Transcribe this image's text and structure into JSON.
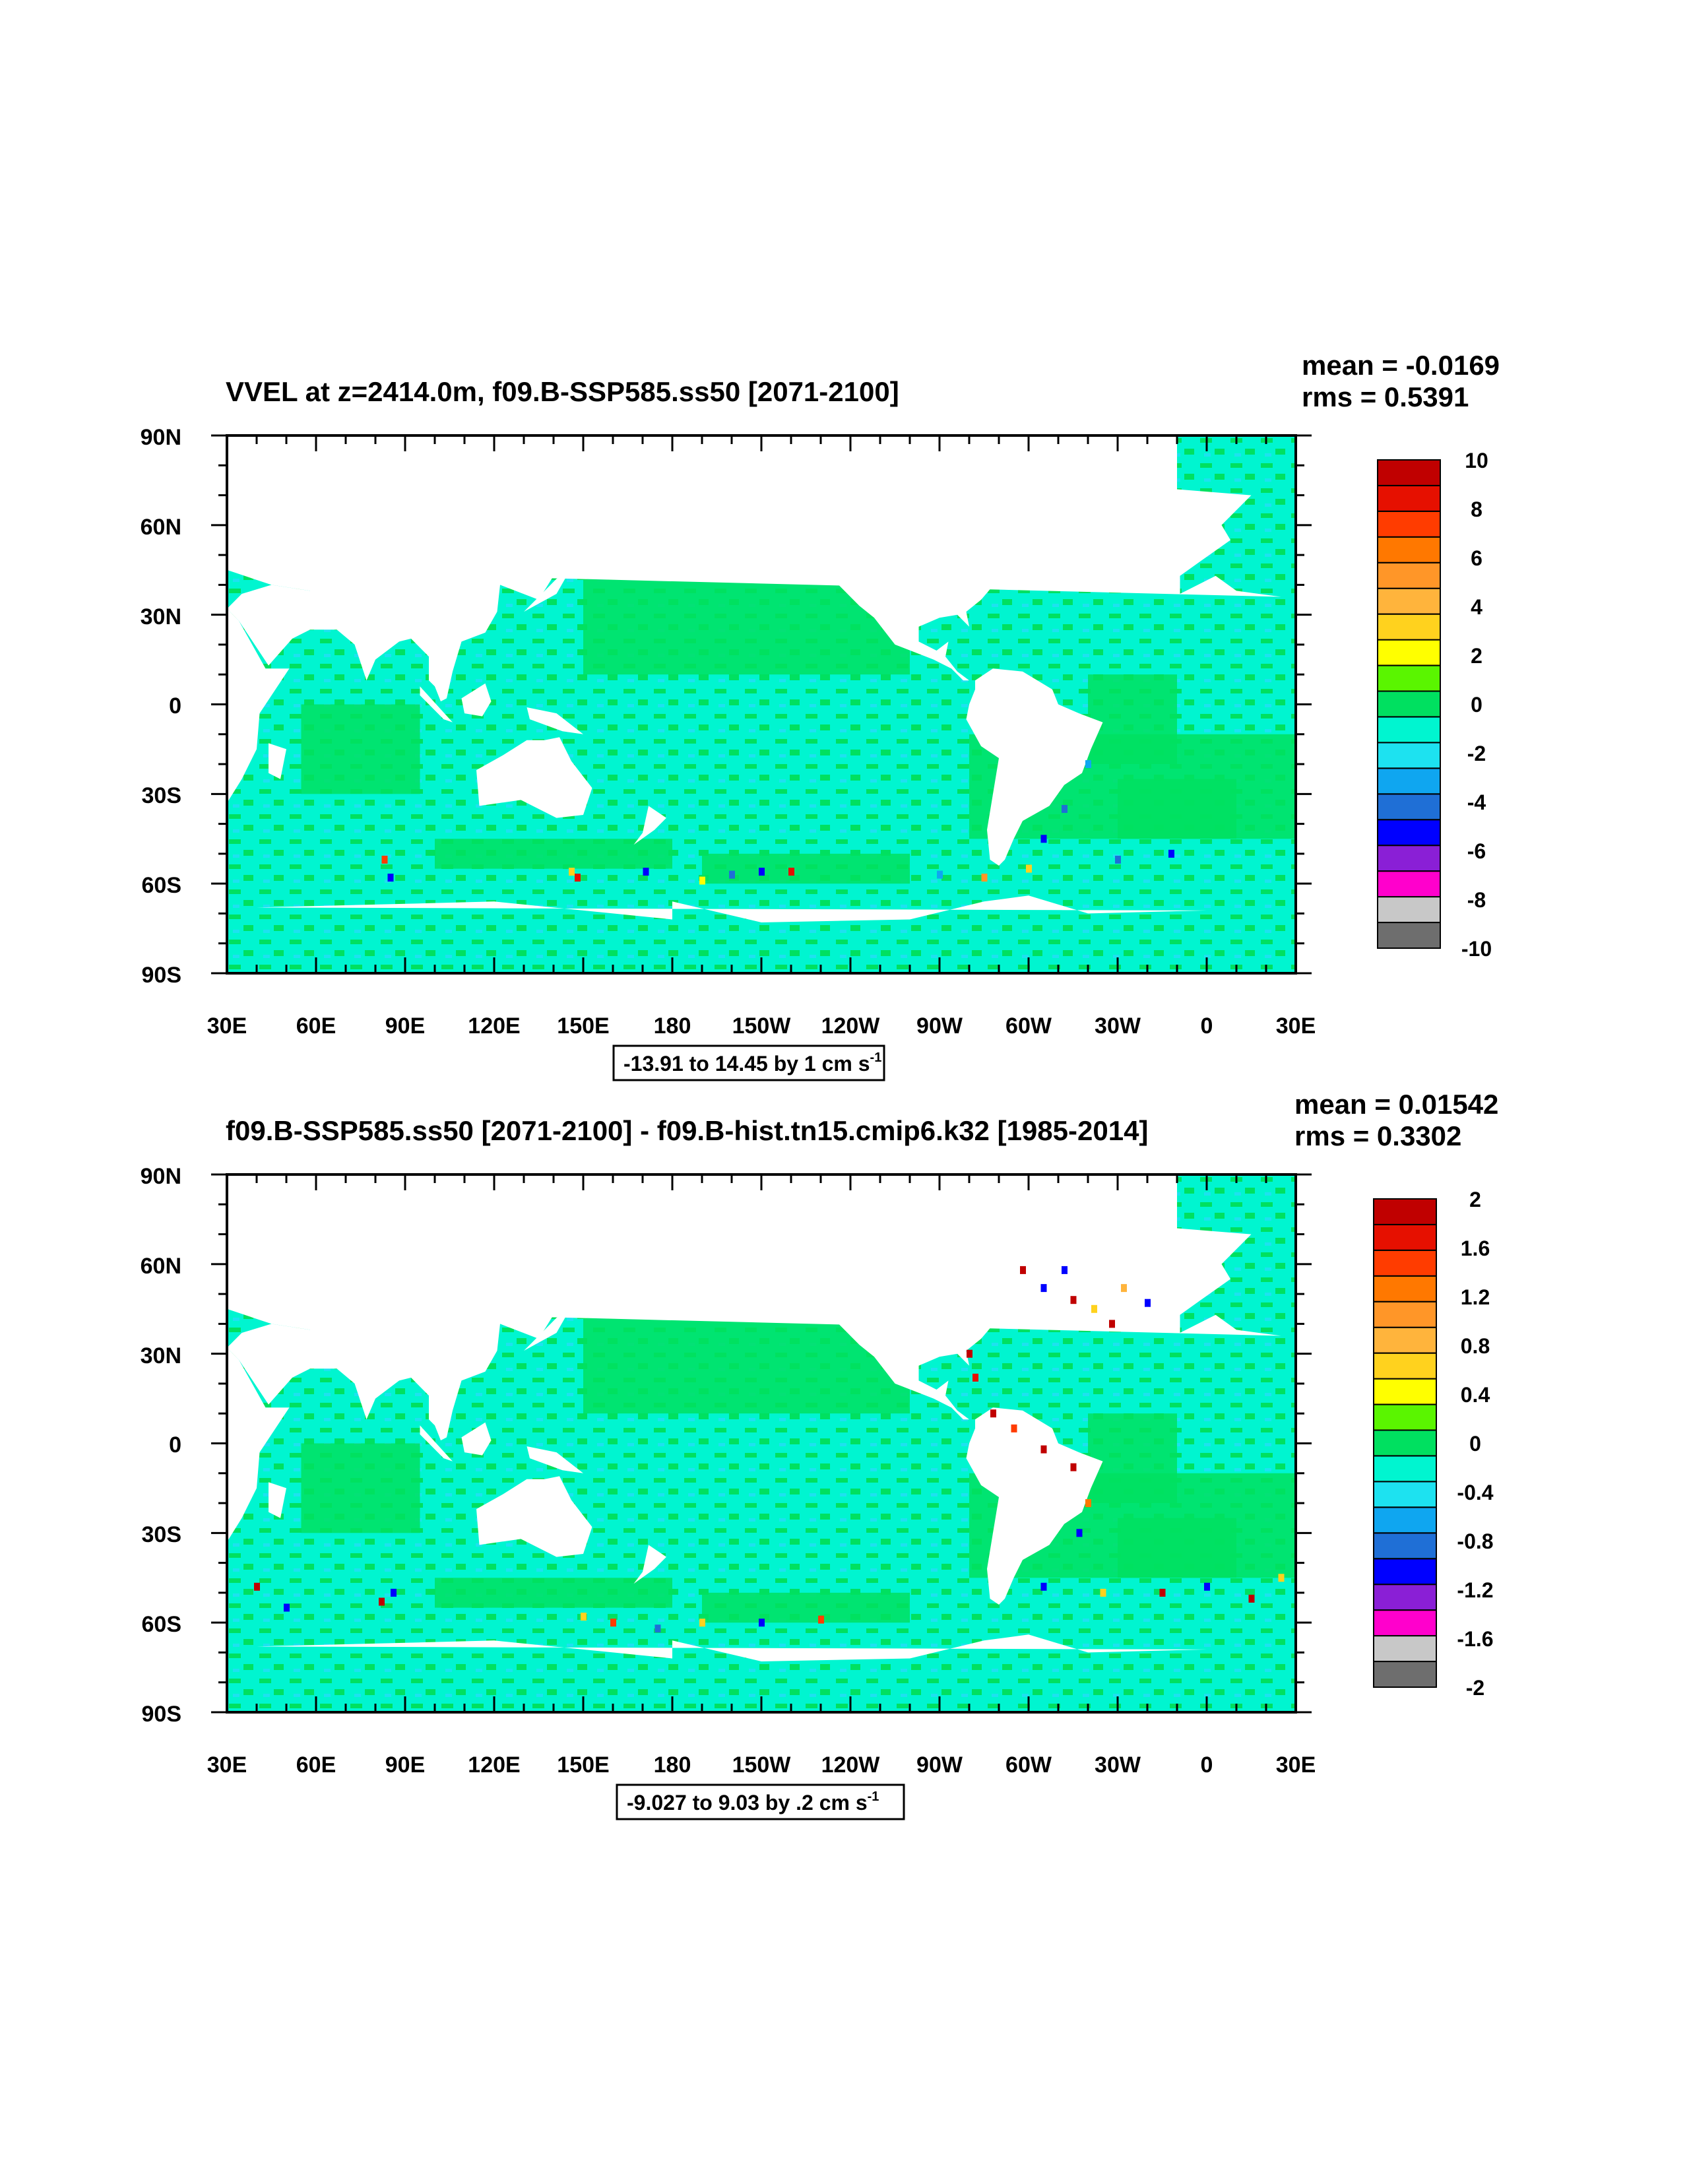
{
  "colorbar_colors": [
    "#6e6e6e",
    "#c8c8c8",
    "#ff00cc",
    "#8a1fd6",
    "#0000ff",
    "#1f6fd6",
    "#0fa6f0",
    "#1de2f0",
    "#00f5d0",
    "#00e060",
    "#5af500",
    "#ffff00",
    "#ffd21e",
    "#ffb43c",
    "#ff9628",
    "#ff7800",
    "#ff3c00",
    "#e61000",
    "#c00000"
  ],
  "map_colors": {
    "ocean_base": "#00f5d0",
    "ocean_alt": "#00e060",
    "land": "#ffffff"
  },
  "x_ticks": [
    "30E",
    "60E",
    "90E",
    "120E",
    "150E",
    "180",
    "150W",
    "120W",
    "90W",
    "60W",
    "30W",
    "0",
    "30E"
  ],
  "y_ticks": [
    "90N",
    "60N",
    "30N",
    "0",
    "30S",
    "60S",
    "90S"
  ],
  "panels": [
    {
      "title": "VVEL at z=2414.0m, f09.B-SSP585.ss50 [2071-2100]",
      "mean": "mean = -0.0169",
      "rms": "rms = 0.5391",
      "range_text": "-13.91 to 14.45 by 1 cm s",
      "range_sup": "-1",
      "colorbar_labels": [
        "10",
        "8",
        "6",
        "4",
        "2",
        "0",
        "-2",
        "-4",
        "-6",
        "-8",
        "-10"
      ],
      "hotspots": [
        {
          "lon": 83,
          "lat": -52,
          "c": "#ff3c00"
        },
        {
          "lon": 85,
          "lat": -58,
          "c": "#0000ff"
        },
        {
          "lon": 146,
          "lat": -56,
          "c": "#ffd21e"
        },
        {
          "lon": 148,
          "lat": -58,
          "c": "#e61000"
        },
        {
          "lon": 171,
          "lat": -56,
          "c": "#0000ff"
        },
        {
          "lon": -170,
          "lat": -59,
          "c": "#ffff00"
        },
        {
          "lon": -160,
          "lat": -57,
          "c": "#1f6fd6"
        },
        {
          "lon": -150,
          "lat": -56,
          "c": "#0000ff"
        },
        {
          "lon": -140,
          "lat": -56,
          "c": "#e61000"
        },
        {
          "lon": -90,
          "lat": -57,
          "c": "#0fa6f0"
        },
        {
          "lon": -75,
          "lat": -58,
          "c": "#ff9628"
        },
        {
          "lon": -60,
          "lat": -55,
          "c": "#ffd21e"
        },
        {
          "lon": -48,
          "lat": -35,
          "c": "#1f6fd6"
        },
        {
          "lon": -55,
          "lat": -45,
          "c": "#0000ff"
        },
        {
          "lon": -40,
          "lat": -20,
          "c": "#0fa6f0"
        },
        {
          "lon": -30,
          "lat": -52,
          "c": "#1f6fd6"
        },
        {
          "lon": -12,
          "lat": -50,
          "c": "#0000ff"
        }
      ]
    },
    {
      "title": "f09.B-SSP585.ss50 [2071-2100] - f09.B-hist.tn15.cmip6.k32 [1985-2014]",
      "mean": "mean = 0.01542",
      "rms": "rms = 0.3302",
      "range_text": "-9.027 to 9.03 by .2 cm s",
      "range_sup": "-1",
      "colorbar_labels": [
        "2",
        "1.6",
        "1.2",
        "0.8",
        "0.4",
        "0",
        "-0.4",
        "-0.8",
        "-1.2",
        "-1.6",
        "-2"
      ],
      "hotspots": [
        {
          "lon": -80,
          "lat": 30,
          "c": "#c00000"
        },
        {
          "lon": -78,
          "lat": 22,
          "c": "#e61000"
        },
        {
          "lon": -72,
          "lat": 10,
          "c": "#c00000"
        },
        {
          "lon": -65,
          "lat": 5,
          "c": "#ff3c00"
        },
        {
          "lon": -55,
          "lat": -2,
          "c": "#c00000"
        },
        {
          "lon": -45,
          "lat": -8,
          "c": "#c00000"
        },
        {
          "lon": -40,
          "lat": -20,
          "c": "#ff7800"
        },
        {
          "lon": -43,
          "lat": -30,
          "c": "#0000ff"
        },
        {
          "lon": -62,
          "lat": 58,
          "c": "#c00000"
        },
        {
          "lon": -55,
          "lat": 52,
          "c": "#0000ff"
        },
        {
          "lon": -48,
          "lat": 58,
          "c": "#0000ff"
        },
        {
          "lon": -45,
          "lat": 48,
          "c": "#c00000"
        },
        {
          "lon": -38,
          "lat": 45,
          "c": "#ffd21e"
        },
        {
          "lon": -32,
          "lat": 40,
          "c": "#c00000"
        },
        {
          "lon": -28,
          "lat": 52,
          "c": "#ffb43c"
        },
        {
          "lon": -20,
          "lat": 47,
          "c": "#0000ff"
        },
        {
          "lon": 82,
          "lat": -53,
          "c": "#c00000"
        },
        {
          "lon": 86,
          "lat": -50,
          "c": "#0000ff"
        },
        {
          "lon": 50,
          "lat": -55,
          "c": "#0000ff"
        },
        {
          "lon": 40,
          "lat": -48,
          "c": "#c00000"
        },
        {
          "lon": 150,
          "lat": -58,
          "c": "#ffd21e"
        },
        {
          "lon": 160,
          "lat": -60,
          "c": "#ff3c00"
        },
        {
          "lon": 175,
          "lat": -62,
          "c": "#1f6fd6"
        },
        {
          "lon": -170,
          "lat": -60,
          "c": "#ffd21e"
        },
        {
          "lon": -150,
          "lat": -60,
          "c": "#0000ff"
        },
        {
          "lon": -130,
          "lat": -59,
          "c": "#ff3c00"
        },
        {
          "lon": -55,
          "lat": -48,
          "c": "#0000ff"
        },
        {
          "lon": -35,
          "lat": -50,
          "c": "#ffd21e"
        },
        {
          "lon": -15,
          "lat": -50,
          "c": "#c00000"
        },
        {
          "lon": 0,
          "lat": -48,
          "c": "#0000ff"
        },
        {
          "lon": 15,
          "lat": -52,
          "c": "#c00000"
        },
        {
          "lon": 25,
          "lat": -45,
          "c": "#ffd21e"
        }
      ]
    }
  ]
}
